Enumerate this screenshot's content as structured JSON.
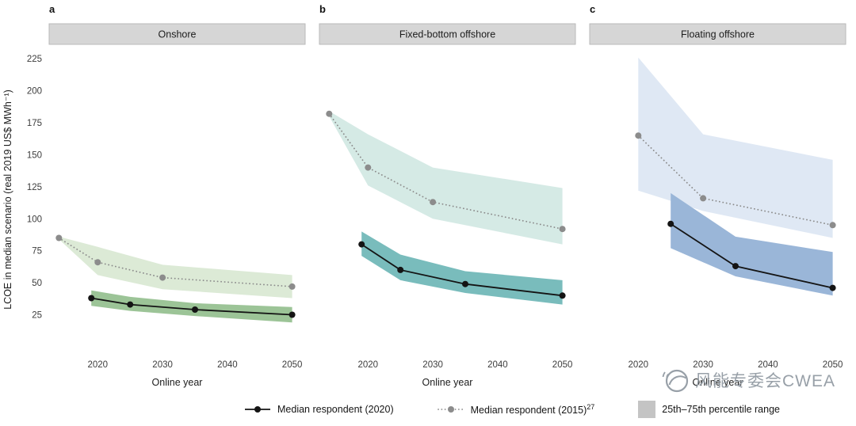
{
  "figure": {
    "watermark_text": "风能专委会CWEA"
  },
  "legend": {
    "median2020": "Median respondent (2020)",
    "median2015": "Median respondent (2015)",
    "median2015_ref": "27",
    "percentile": "25th–75th percentile range"
  },
  "chart_data": [
    {
      "type": "area",
      "panel_letter": "a",
      "title": "Onshore",
      "xlabel": "Online year",
      "ylabel": "LCOE in median scenario (real 2019 US$ MWh⁻¹)",
      "xlim": [
        2012.5,
        2052
      ],
      "ylim": [
        -5,
        235
      ],
      "xticks": [
        2020,
        2030,
        2040,
        2050
      ],
      "yticks": [
        25,
        50,
        75,
        100,
        125,
        150,
        175,
        200,
        225
      ],
      "show_yticks": true,
      "bands": [
        {
          "name": "percentile-band-2015",
          "color": "#dcead6",
          "x": [
            2014,
            2020,
            2030,
            2050
          ],
          "upper": [
            86,
            78,
            64,
            56
          ],
          "lower": [
            84,
            56,
            45,
            38
          ]
        },
        {
          "name": "percentile-band-2020",
          "color": "#9cc497",
          "x": [
            2019,
            2025,
            2035,
            2050
          ],
          "upper": [
            44,
            39,
            34,
            31
          ],
          "lower": [
            32,
            28,
            24,
            19
          ]
        }
      ],
      "series": [
        {
          "name": "Median respondent (2015)",
          "style": "dotted",
          "color": "#8c8c8c",
          "x": [
            2014,
            2020,
            2030,
            2050
          ],
          "y": [
            85,
            66,
            54,
            47
          ]
        },
        {
          "name": "Median respondent (2020)",
          "style": "solid",
          "color": "#141414",
          "x": [
            2019,
            2025,
            2035,
            2050
          ],
          "y": [
            38,
            33,
            29,
            25
          ]
        }
      ]
    },
    {
      "type": "area",
      "panel_letter": "b",
      "title": "Fixed-bottom offshore",
      "xlabel": "Online year",
      "xlim": [
        2012.5,
        2052
      ],
      "ylim": [
        -5,
        235
      ],
      "xticks": [
        2020,
        2030,
        2040,
        2050
      ],
      "yticks": [
        25,
        50,
        75,
        100,
        125,
        150,
        175,
        200,
        225
      ],
      "show_yticks": false,
      "bands": [
        {
          "name": "percentile-band-2015",
          "color": "#d5eae5",
          "x": [
            2014,
            2020,
            2030,
            2050
          ],
          "upper": [
            184,
            166,
            140,
            124
          ],
          "lower": [
            180,
            126,
            100,
            80
          ]
        },
        {
          "name": "percentile-band-2020",
          "color": "#79bcbc",
          "x": [
            2019,
            2025,
            2035,
            2050
          ],
          "upper": [
            90,
            72,
            59,
            52
          ],
          "lower": [
            71,
            52,
            42,
            33
          ]
        }
      ],
      "series": [
        {
          "name": "Median respondent (2015)",
          "style": "dotted",
          "color": "#8c8c8c",
          "x": [
            2014,
            2020,
            2030,
            2050
          ],
          "y": [
            182,
            140,
            113,
            92
          ]
        },
        {
          "name": "Median respondent (2020)",
          "style": "solid",
          "color": "#141414",
          "x": [
            2019,
            2025,
            2035,
            2050
          ],
          "y": [
            80,
            60,
            49,
            40
          ]
        }
      ]
    },
    {
      "type": "area",
      "panel_letter": "c",
      "title": "Floating offshore",
      "xlabel": "Online year",
      "xlim": [
        2012.5,
        2052
      ],
      "ylim": [
        -5,
        235
      ],
      "xticks": [
        2020,
        2030,
        2040,
        2050
      ],
      "yticks": [
        25,
        50,
        75,
        100,
        125,
        150,
        175,
        200,
        225
      ],
      "show_yticks": false,
      "bands": [
        {
          "name": "percentile-band-2015",
          "color": "#dfe8f4",
          "x": [
            2020,
            2030,
            2050
          ],
          "upper": [
            226,
            166,
            146
          ],
          "lower": [
            122,
            106,
            85
          ]
        },
        {
          "name": "percentile-band-2020",
          "color": "#9ab6d8",
          "x": [
            2025,
            2035,
            2050
          ],
          "upper": [
            120,
            86,
            74
          ],
          "lower": [
            77,
            55,
            40
          ]
        }
      ],
      "series": [
        {
          "name": "Median respondent (2015)",
          "style": "dotted",
          "color": "#8c8c8c",
          "x": [
            2020,
            2030,
            2050
          ],
          "y": [
            165,
            116,
            95
          ]
        },
        {
          "name": "Median respondent (2020)",
          "style": "solid",
          "color": "#141414",
          "x": [
            2025,
            2035,
            2050
          ],
          "y": [
            96,
            63,
            46
          ]
        }
      ]
    }
  ]
}
